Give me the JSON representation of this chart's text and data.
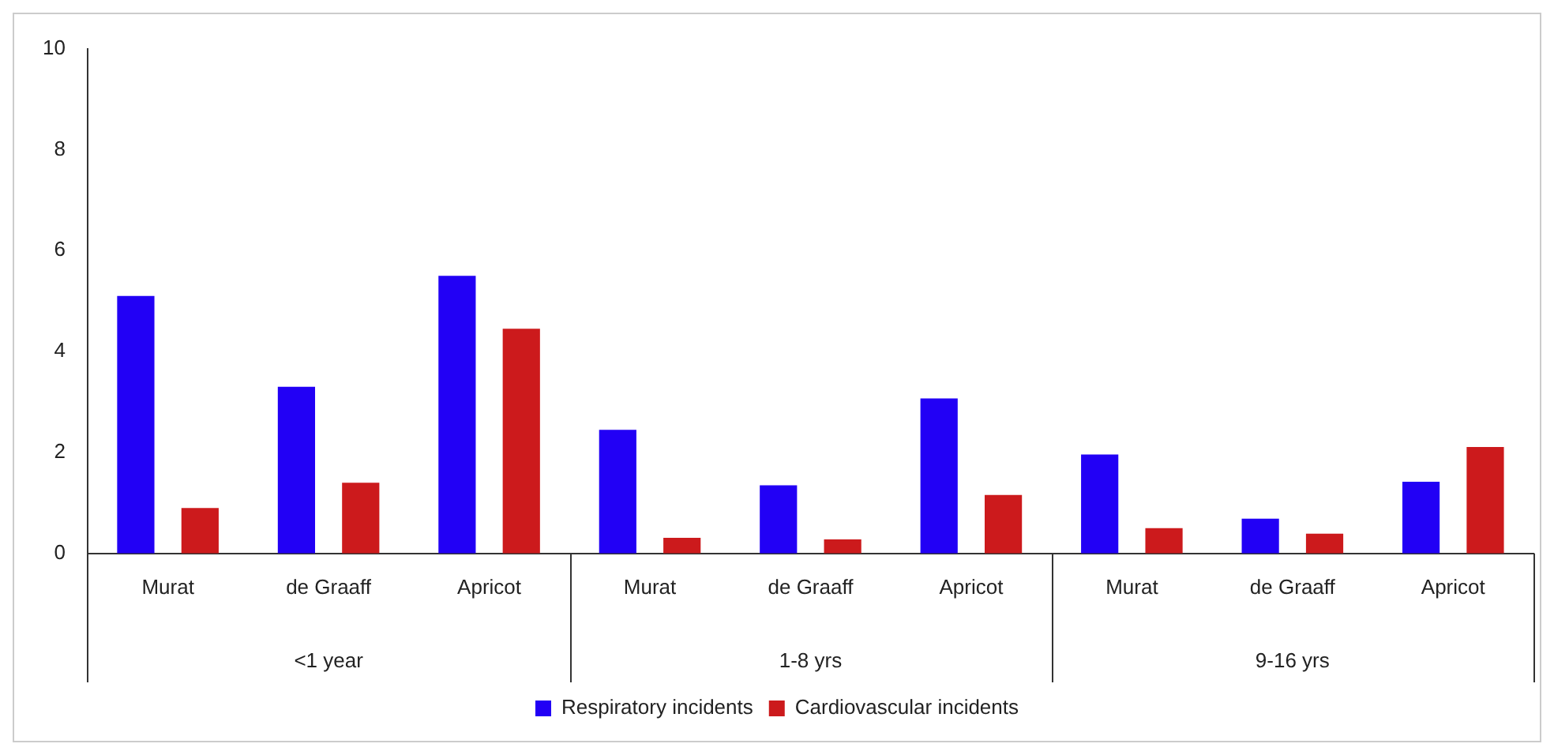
{
  "chart_data": {
    "type": "bar",
    "categories": [
      "Murat",
      "de Graaff",
      "Apricot",
      "Murat",
      "de Graaff",
      "Apricot",
      "Murat",
      "de Graaff",
      "Apricot"
    ],
    "series": [
      {
        "name": "Respiratory incidents",
        "color": "#2200f5",
        "values": [
          5.1,
          3.3,
          5.5,
          2.45,
          1.35,
          3.07,
          1.96,
          0.69,
          1.42
        ]
      },
      {
        "name": "Cardiovascular incidents",
        "color": "#cc1a1c",
        "values": [
          0.9,
          1.4,
          4.45,
          0.31,
          0.28,
          1.16,
          0.5,
          0.39,
          2.11
        ]
      }
    ],
    "annotations": [
      "<1 year",
      "1-8 yrs",
      "9-16 yrs"
    ],
    "ylim": [
      0,
      10
    ],
    "yticks": [
      0,
      2,
      4,
      6,
      8,
      10
    ],
    "grid": false,
    "legend": "bottom"
  }
}
